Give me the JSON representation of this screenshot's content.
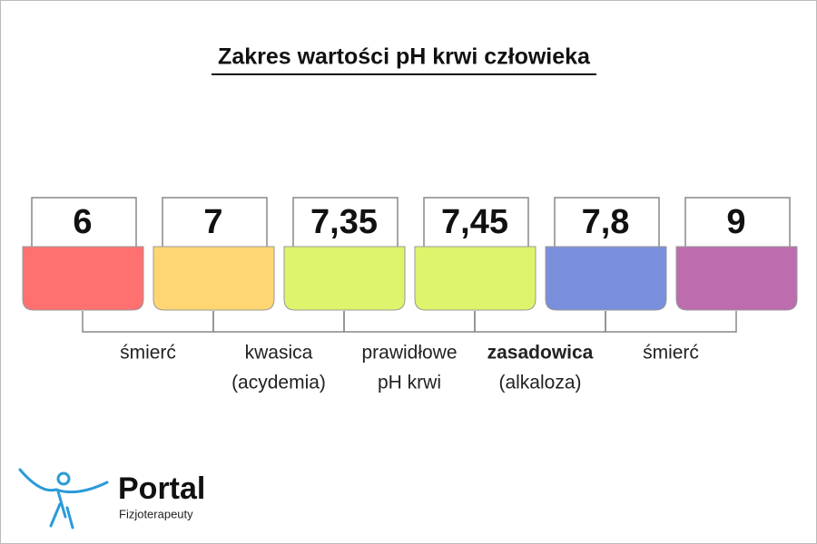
{
  "title": "Zakres wartości pH krwi człowieka",
  "scale": [
    {
      "value": "6",
      "color": "#ff7070"
    },
    {
      "value": "7",
      "color": "#ffd673"
    },
    {
      "value": "7,35",
      "color": "#def46c"
    },
    {
      "value": "7,45",
      "color": "#def46c"
    },
    {
      "value": "7,8",
      "color": "#7a8fdb"
    },
    {
      "value": "9",
      "color": "#bd6cae"
    }
  ],
  "ranges": [
    {
      "lines": [
        "śmierć"
      ]
    },
    {
      "lines": [
        "kwasica",
        "(acydemia)"
      ]
    },
    {
      "lines": [
        "prawidłowe",
        "pH krwi"
      ]
    },
    {
      "lines": [
        "zasadowica",
        "(alkaloza)"
      ],
      "bold_first_line": true
    },
    {
      "lines": [
        "śmierć"
      ]
    }
  ],
  "logo": {
    "name": "Portal",
    "tagline": "Fizjoterapeuty"
  }
}
